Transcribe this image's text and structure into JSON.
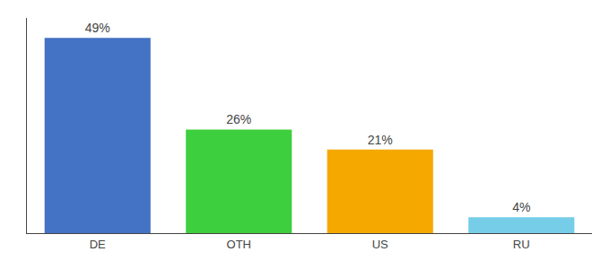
{
  "chart_data": {
    "type": "bar",
    "categories": [
      "DE",
      "OTH",
      "US",
      "RU"
    ],
    "values": [
      49,
      26,
      21,
      4
    ],
    "value_labels": [
      "49%",
      "26%",
      "21%",
      "4%"
    ],
    "data_labels": true,
    "colors": [
      "#4472c4",
      "#3ecf3e",
      "#f5a800",
      "#76cde8"
    ],
    "ylim": [
      0,
      54
    ],
    "tick_labels": "x"
  }
}
